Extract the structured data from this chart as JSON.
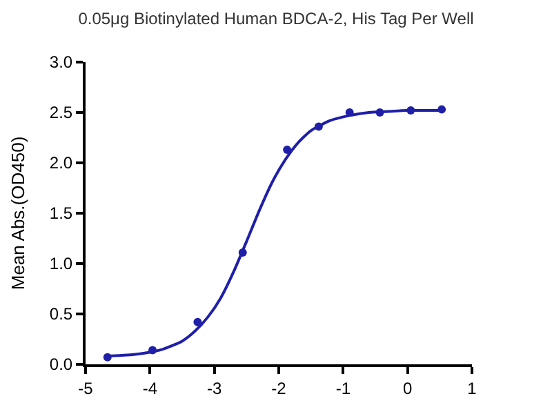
{
  "chart_data": {
    "type": "scatter",
    "title": "0.05μg Biotinylated Human BDCA-2, His Tag Per Well",
    "ylabel": "Mean Abs.(OD450)",
    "xlim": [
      -5,
      1
    ],
    "xticks": [
      {
        "value": -5,
        "label": "-5"
      },
      {
        "value": -4,
        "label": "-4"
      },
      {
        "value": -3,
        "label": "-3"
      },
      {
        "value": -2,
        "label": "-2"
      },
      {
        "value": -1,
        "label": "-1"
      },
      0,
      1
    ],
    "ylim": [
      0,
      3
    ],
    "yticks": [
      {
        "value": 0,
        "label": "0.0"
      },
      {
        "value": 0.5,
        "label": "0.5"
      },
      {
        "value": 1,
        "label": "1.0"
      },
      {
        "value": 1.5,
        "label": "1.5"
      },
      {
        "value": 2,
        "label": "2.0"
      },
      {
        "value": 2.5,
        "label": "2.5"
      },
      {
        "value": 3,
        "label": "3.0"
      }
    ],
    "series": [
      {
        "marker": "circle",
        "color": "#1f1fa8",
        "x": [
          -4.66,
          -3.96,
          -3.26,
          -2.56,
          -1.87,
          -1.38,
          -0.9,
          -0.43,
          0.05,
          0.53
        ],
        "values": [
          0.07,
          0.14,
          0.42,
          1.11,
          2.13,
          2.36,
          2.5,
          2.5,
          2.52,
          2.53
        ]
      },
      {
        "type": "line",
        "marker": "none",
        "line_style": "solid",
        "color": "#1f1fa8",
        "x": [
          -4.7,
          -4.4,
          -4.1,
          -3.8,
          -3.5,
          -3.3,
          -3.1,
          -2.9,
          -2.7,
          -2.5,
          -2.3,
          -2.1,
          -1.9,
          -1.7,
          -1.5,
          -1.2,
          -0.9,
          -0.6,
          -0.3,
          0,
          0.55
        ],
        "values": [
          0.08,
          0.09,
          0.11,
          0.15,
          0.23,
          0.33,
          0.47,
          0.66,
          0.92,
          1.22,
          1.53,
          1.81,
          2.03,
          2.2,
          2.32,
          2.42,
          2.47,
          2.5,
          2.51,
          2.52,
          2.52
        ]
      }
    ]
  }
}
